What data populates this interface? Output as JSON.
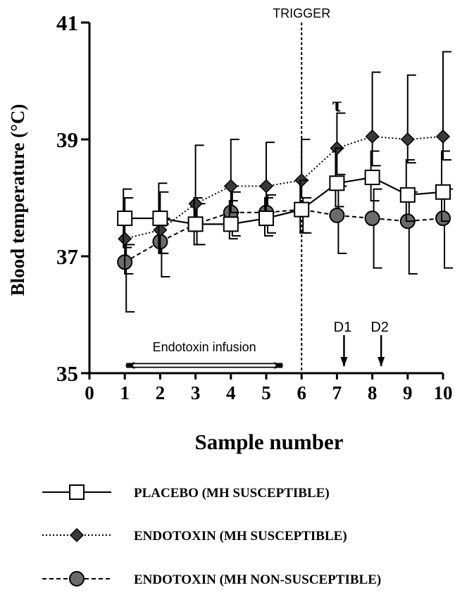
{
  "chart_data": {
    "type": "line",
    "xlabel": "Sample number",
    "ylabel": "Blood temperature (°C)",
    "xlim": [
      0,
      10
    ],
    "ylim": [
      35,
      41
    ],
    "x_ticks": [
      "0",
      "1",
      "2",
      "3",
      "4",
      "5",
      "6",
      "7",
      "8",
      "9",
      "10"
    ],
    "y_ticks": [
      "35",
      "37",
      "39",
      "41"
    ],
    "grid": false,
    "legend_position": "bottom",
    "series": [
      {
        "name": "PLACEBO (MH SUSCEPTIBLE)",
        "marker": "square",
        "line_style": "solid",
        "x": [
          1,
          2,
          3,
          4,
          5,
          6,
          7,
          8,
          9,
          10
        ],
        "y": [
          37.65,
          37.65,
          37.55,
          37.55,
          37.65,
          37.8,
          38.25,
          38.35,
          38.05,
          38.1
        ],
        "error_upper": [
          0.5,
          0.6,
          0.45,
          0.4,
          0.35,
          0.5,
          0.6,
          0.45,
          0.6,
          0.7
        ],
        "error_lower": [
          0.5,
          0.6,
          0.35,
          0.25,
          0.3,
          0.4,
          0.4,
          0.4,
          0.45,
          0.5
        ]
      },
      {
        "name": "ENDOTOXIN (MH SUSCEPTIBLE)",
        "marker": "diamond",
        "line_style": "dotted",
        "x": [
          1,
          2,
          3,
          4,
          5,
          6,
          7,
          8,
          9,
          10
        ],
        "y": [
          37.3,
          37.45,
          37.9,
          38.2,
          38.2,
          38.3,
          38.85,
          39.05,
          39.0,
          39.05
        ],
        "error_upper": [
          0.7,
          0.65,
          1.0,
          0.8,
          0.75,
          0.7,
          0.6,
          1.1,
          1.1,
          1.45
        ],
        "error_lower": [
          0.6,
          0.4,
          0.35,
          0.45,
          0.45,
          0.3,
          0.45,
          0.5,
          0.4,
          0.4
        ]
      },
      {
        "name": "ENDOTOXIN (MH NON-SUSCEPTIBLE)",
        "marker": "circle",
        "line_style": "dashed",
        "x": [
          1,
          2,
          3,
          4,
          5,
          6,
          7,
          8,
          9,
          10
        ],
        "y": [
          36.9,
          37.25,
          37.55,
          37.75,
          37.75,
          37.8,
          37.7,
          37.65,
          37.6,
          37.65
        ],
        "error_upper": [
          0.3,
          0.4,
          0.35,
          0.35,
          0.3,
          0.2,
          0.5,
          0.5,
          0.5,
          0.5
        ],
        "error_lower": [
          0.85,
          0.6,
          0.35,
          0.4,
          0.35,
          0.4,
          0.65,
          0.85,
          0.9,
          0.85
        ]
      }
    ],
    "annotations": {
      "trigger_label": "TRIGGER",
      "trigger_x": 6,
      "infusion_label": "Endotoxin infusion",
      "infusion_range": [
        1,
        5.5
      ],
      "tau_symbol": "τ",
      "tau_x": 7,
      "d1_label": "D1",
      "d1_x": 7.2,
      "d2_label": "D2",
      "d2_x": 8.25
    }
  }
}
